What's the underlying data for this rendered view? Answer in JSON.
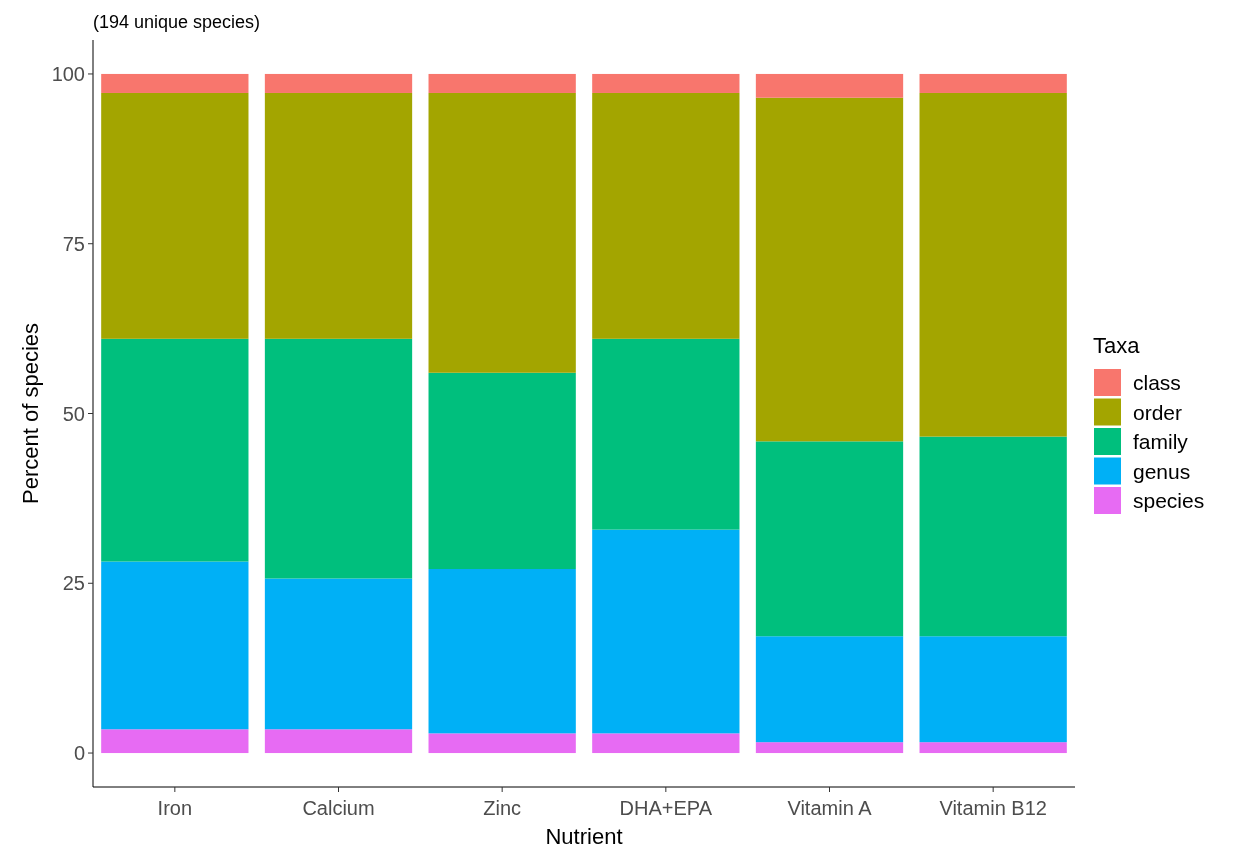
{
  "chart_data": {
    "type": "bar",
    "title": "(194 unique species)",
    "xlabel": "Nutrient",
    "ylabel": "Percent of species",
    "legend_title": "Taxa",
    "legend": "right",
    "stacked": true,
    "grid": false,
    "categories": [
      "Iron",
      "Calcium",
      "Zinc",
      "DHA+EPA",
      "Vitamin A",
      "Vitamin B12"
    ],
    "ylim": [
      -5,
      105
    ],
    "yticks": [
      0,
      25,
      50,
      75,
      100
    ],
    "series": [
      {
        "name": "species",
        "color": "#e76bf3",
        "values": [
          3.5,
          3.5,
          2.9,
          2.9,
          1.6,
          1.6
        ]
      },
      {
        "name": "genus",
        "color": "#00b0f6",
        "values": [
          24.7,
          22.2,
          24.2,
          30.0,
          15.6,
          15.6
        ]
      },
      {
        "name": "family",
        "color": "#00bf7d",
        "values": [
          32.8,
          35.3,
          28.9,
          28.1,
          28.7,
          29.4
        ]
      },
      {
        "name": "order",
        "color": "#a3a500",
        "values": [
          36.2,
          36.2,
          41.2,
          36.2,
          50.6,
          50.6
        ]
      },
      {
        "name": "class",
        "color": "#f8766d",
        "values": [
          2.8,
          2.8,
          2.8,
          2.8,
          3.5,
          2.8
        ]
      }
    ]
  }
}
